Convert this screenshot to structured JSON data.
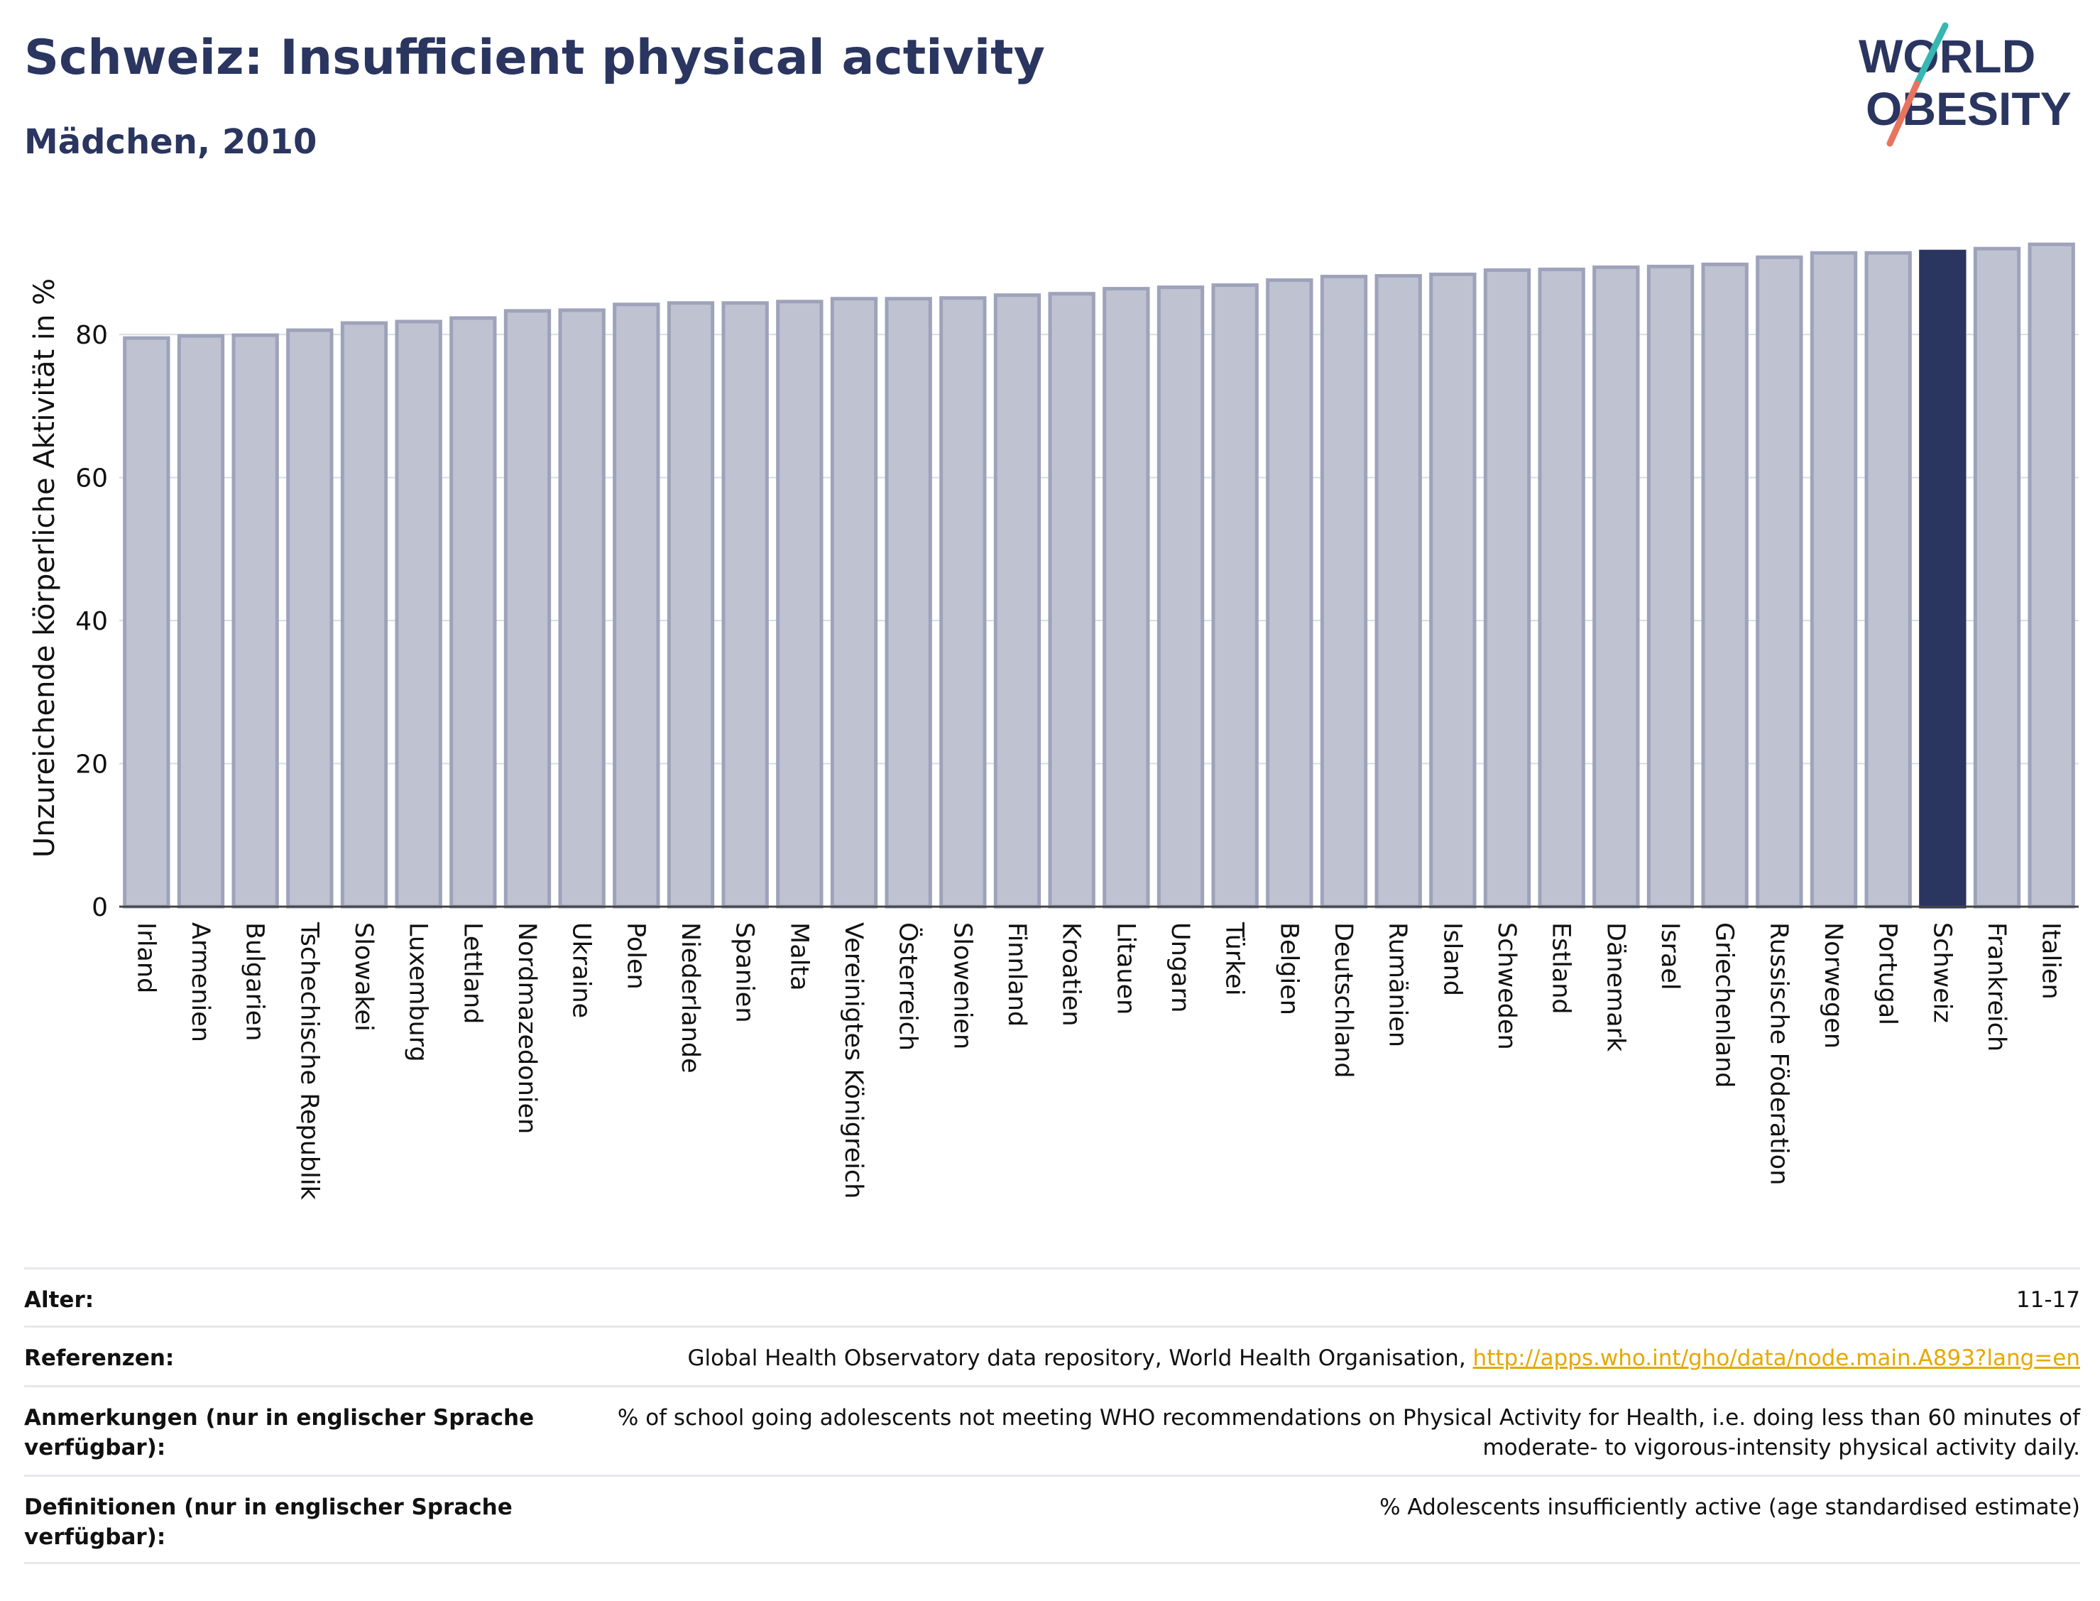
{
  "header": {
    "title": "Schweiz: Insufficient physical activity",
    "subtitle": "Mädchen, 2010"
  },
  "logo": {
    "line1": "WORLD",
    "line2": "OBESITY",
    "icon": "world-obesity-logo"
  },
  "colors": {
    "bar": "#bfc2d0",
    "bar_border": "#9ea3bb",
    "highlight": "#2a3560",
    "grid": "#d9dce5",
    "text": "#2a3560"
  },
  "chart_data": {
    "type": "bar",
    "ylabel": "Unzureichende körperliche Aktivität in %",
    "xlabel": "",
    "ylim": [
      0,
      95
    ],
    "yticks": [
      0,
      20,
      40,
      60,
      80
    ],
    "grid": true,
    "highlight": "Schweiz",
    "categories": [
      "Irland",
      "Armenien",
      "Bulgarien",
      "Tschechische Republik",
      "Slowakei",
      "Luxemburg",
      "Lettland",
      "Nordmazedonien",
      "Ukraine",
      "Polen",
      "Niederlande",
      "Spanien",
      "Malta",
      "Vereinigtes Königreich",
      "Österreich",
      "Slowenien",
      "Finnland",
      "Kroatien",
      "Litauen",
      "Ungarn",
      "Türkei",
      "Belgien",
      "Deutschland",
      "Rumänien",
      "Island",
      "Schweden",
      "Estland",
      "Dänemark",
      "Israel",
      "Griechenland",
      "Russische Föderation",
      "Norwegen",
      "Portugal",
      "Schweiz",
      "Frankreich",
      "Italien"
    ],
    "values": [
      79.5,
      79.8,
      79.9,
      80.6,
      81.6,
      81.8,
      82.3,
      83.3,
      83.4,
      84.2,
      84.4,
      84.4,
      84.6,
      85.0,
      85.0,
      85.1,
      85.5,
      85.7,
      86.4,
      86.6,
      86.9,
      87.6,
      88.1,
      88.2,
      88.4,
      89.0,
      89.1,
      89.4,
      89.5,
      89.8,
      90.8,
      91.4,
      91.4,
      91.6,
      92.0,
      92.6
    ]
  },
  "meta": {
    "age_label": "Alter:",
    "age_value": "11-17",
    "ref_label": "Referenzen:",
    "ref_text": "Global Health Observatory data repository, World Health Organisation, ",
    "ref_link": "http://apps.who.int/gho/data/node.main.A893?lang=en",
    "notes_label": "Anmerkungen (nur in englischer Sprache verfügbar):",
    "notes_value": "% of school going adolescents not meeting WHO recommendations on Physical Activity for Health, i.e. doing less than 60 minutes of moderate- to vigorous-intensity physical activity daily.",
    "def_label": "Definitionen (nur in englischer Sprache verfügbar):",
    "def_value": "% Adolescents insufficiently active (age standardised estimate)"
  }
}
